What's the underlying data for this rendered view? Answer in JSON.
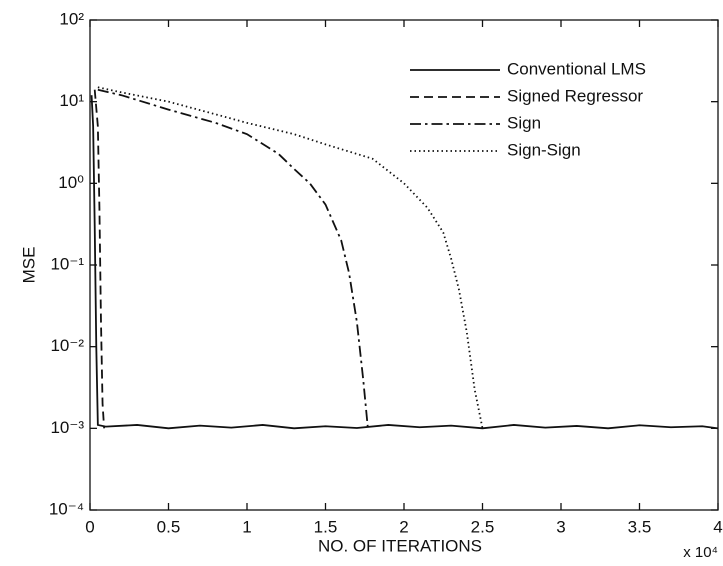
{
  "chart_data": {
    "type": "line",
    "xlabel": "NO. OF ITERATIONS",
    "ylabel": "MSE",
    "x_multiplier": "x 10⁴",
    "xlim": [
      0,
      4
    ],
    "xticks": [
      0,
      0.5,
      1,
      1.5,
      2,
      2.5,
      3,
      3.5,
      4
    ],
    "ylim": [
      0.0001,
      100
    ],
    "log_y": true,
    "yticks": [
      {
        "value": 0.0001,
        "label": "10⁻⁴"
      },
      {
        "value": 0.001,
        "label": "10⁻³"
      },
      {
        "value": 0.01,
        "label": "10⁻²"
      },
      {
        "value": 0.1,
        "label": "10⁻¹"
      },
      {
        "value": 1,
        "label": "10⁰"
      },
      {
        "value": 10,
        "label": "10¹"
      },
      {
        "value": 100,
        "label": "10²"
      }
    ],
    "legend": "upper right",
    "series": [
      {
        "name": "Conventional LMS",
        "color": "#111111",
        "style": "solid",
        "x": [
          0.01,
          0.02,
          0.03,
          0.04,
          0.05,
          0.1,
          0.3,
          0.5,
          0.7,
          0.9,
          1.1,
          1.3,
          1.5,
          1.7,
          1.9,
          2.1,
          2.3,
          2.5,
          2.7,
          2.9,
          3.1,
          3.3,
          3.5,
          3.7,
          3.9,
          4.0
        ],
        "values": [
          12,
          5,
          0.3,
          0.01,
          0.0011,
          0.00105,
          0.0011,
          0.001,
          0.00108,
          0.00102,
          0.0011,
          0.001,
          0.00106,
          0.00101,
          0.0011,
          0.00103,
          0.00108,
          0.001,
          0.0011,
          0.00102,
          0.00107,
          0.001,
          0.00109,
          0.00103,
          0.00106,
          0.001
        ]
      },
      {
        "name": "Signed Regressor",
        "color": "#111111",
        "style": "dashed",
        "x": [
          0.03,
          0.05,
          0.06,
          0.07,
          0.08,
          0.09
        ],
        "values": [
          14,
          5,
          0.5,
          0.02,
          0.002,
          0.001
        ]
      },
      {
        "name": "Sign",
        "color": "#111111",
        "style": "dashdot",
        "x": [
          0.05,
          0.2,
          0.5,
          0.8,
          1.0,
          1.2,
          1.3,
          1.4,
          1.5,
          1.6,
          1.65,
          1.7,
          1.74,
          1.77
        ],
        "values": [
          14,
          12,
          8,
          5.5,
          4,
          2.3,
          1.5,
          1,
          0.55,
          0.2,
          0.08,
          0.02,
          0.004,
          0.001
        ]
      },
      {
        "name": "Sign-Sign",
        "color": "#111111",
        "style": "dotted",
        "x": [
          0.05,
          0.2,
          0.5,
          0.8,
          1.0,
          1.3,
          1.5,
          1.8,
          2.0,
          2.15,
          2.25,
          2.3,
          2.35,
          2.4,
          2.45,
          2.5
        ],
        "values": [
          15,
          13,
          10,
          7,
          5.5,
          4,
          3,
          2,
          1,
          0.5,
          0.25,
          0.12,
          0.05,
          0.015,
          0.003,
          0.001
        ]
      }
    ]
  }
}
